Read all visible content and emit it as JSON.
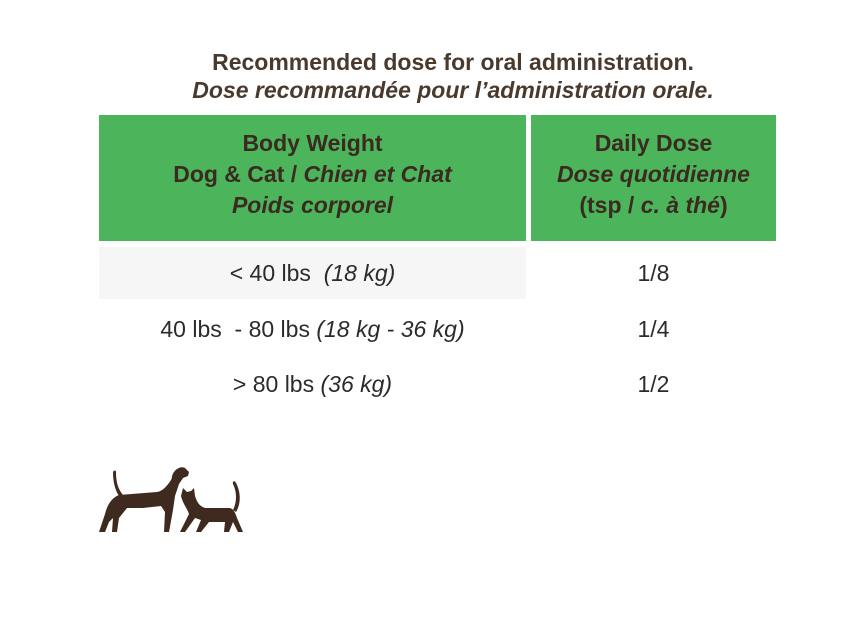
{
  "title": {
    "en": "Recommended dose for oral administration.",
    "fr": "Dose recommandée pour l’administration orale."
  },
  "table": {
    "header": {
      "col1_line1": "Body Weight",
      "col1_line2_plain": "Dog & Cat / ",
      "col1_line2_italic": "Chien et Chat",
      "col1_line3": "Poids corporel",
      "col2_line1": "Daily Dose",
      "col2_line2": "Dose quotidienne",
      "col2_line3_open": "(tsp / ",
      "col2_line3_italic": "c. à thé",
      "col2_line3_close": ")"
    },
    "rows": [
      {
        "weight_plain": "< 40 lbs  ",
        "weight_metric": "(18 kg)",
        "dose": "1/8"
      },
      {
        "weight_plain": "40 lbs  - 80 lbs ",
        "weight_metric": "(18 kg - 36 kg)",
        "dose": "1/4"
      },
      {
        "weight_plain": "> 80 lbs ",
        "weight_metric": "(36 kg)",
        "dose": "1/2"
      }
    ]
  },
  "colors": {
    "header_green": "#4cb55b",
    "title_brown": "#4a3a2e",
    "logo_brown": "#3e2a1e"
  },
  "icons": [
    "dog-icon",
    "cat-icon"
  ]
}
